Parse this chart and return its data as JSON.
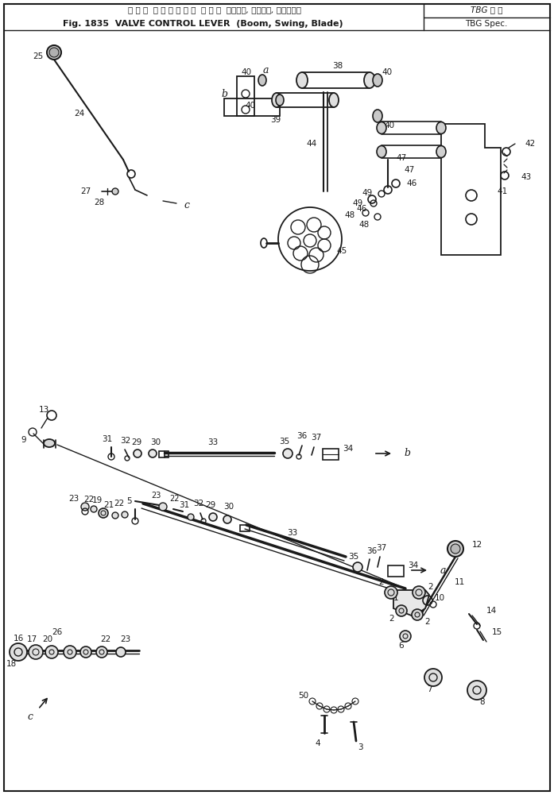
{
  "bg": "#ffffff",
  "lc": "#1a1a1a",
  "fw": 6.97,
  "fh": 10.01,
  "dpi": 100,
  "title": {
    "jp_top": "バ ル ブ  コ ン ト ロ ー ル  レ バ ー  （ブーム, スイング, ブレード）",
    "en_bot": "Fig. 1835  VALVE CONTROL LEVER  (Boom, Swing, Blade)",
    "spec_jp": "TBG 仕 様",
    "spec_en": "TBG Spec."
  }
}
